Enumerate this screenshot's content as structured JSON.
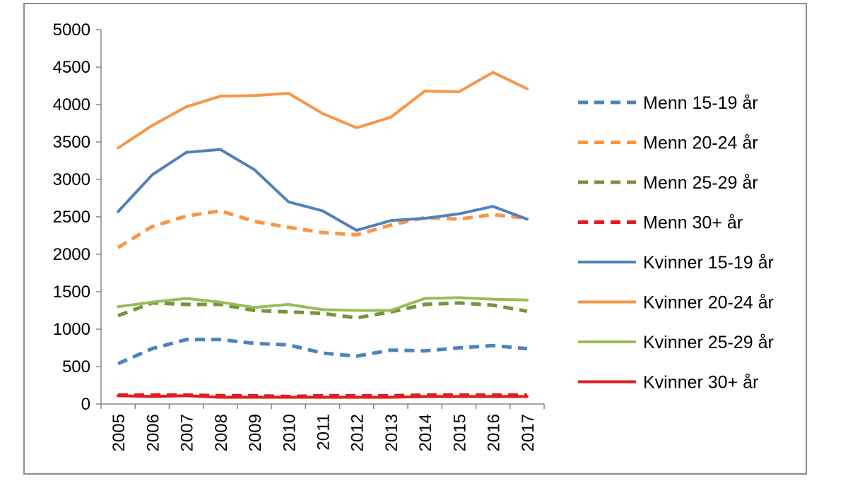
{
  "chart_data": {
    "type": "line",
    "title": "",
    "xlabel": "",
    "ylabel": "",
    "ylim": [
      0,
      5000
    ],
    "yticks": [
      0,
      500,
      1000,
      1500,
      2000,
      2500,
      3000,
      3500,
      4000,
      4500,
      5000
    ],
    "x": [
      "2005",
      "2006",
      "2007",
      "2008",
      "2009",
      "2010",
      "2011",
      "2012",
      "2013",
      "2014",
      "2015",
      "2016",
      "2017"
    ],
    "legend_position": "right",
    "series": [
      {
        "name": "Menn 15-19 år",
        "color": "#4f81bd",
        "style": "dashed",
        "values": [
          540,
          740,
          860,
          860,
          810,
          790,
          680,
          640,
          720,
          710,
          750,
          780,
          740
        ]
      },
      {
        "name": "Menn 20-24 år",
        "color": "#f79646",
        "style": "dashed",
        "values": [
          2090,
          2370,
          2510,
          2580,
          2440,
          2360,
          2290,
          2260,
          2390,
          2490,
          2470,
          2530,
          2480
        ]
      },
      {
        "name": "Menn 25-29 år",
        "color": "#77933c",
        "style": "dashed",
        "values": [
          1180,
          1350,
          1330,
          1330,
          1250,
          1230,
          1210,
          1150,
          1230,
          1330,
          1350,
          1320,
          1240
        ]
      },
      {
        "name": "Menn 30+ år",
        "color": "#e41a1c",
        "style": "dashed",
        "values": [
          120,
          120,
          120,
          110,
          110,
          100,
          110,
          110,
          110,
          120,
          120,
          120,
          120
        ]
      },
      {
        "name": "Kvinner 15-19 år",
        "color": "#4f81bd",
        "style": "solid",
        "values": [
          2570,
          3060,
          3360,
          3400,
          3130,
          2700,
          2580,
          2320,
          2450,
          2480,
          2540,
          2640,
          2470
        ]
      },
      {
        "name": "Kvinner 20-24 år",
        "color": "#f79646",
        "style": "solid",
        "values": [
          3420,
          3720,
          3970,
          4110,
          4120,
          4150,
          3880,
          3690,
          3830,
          4180,
          4170,
          4430,
          4210
        ]
      },
      {
        "name": "Kvinner 25-29 år",
        "color": "#9bbb59",
        "style": "solid",
        "values": [
          1300,
          1360,
          1410,
          1360,
          1290,
          1330,
          1260,
          1250,
          1250,
          1410,
          1420,
          1400,
          1390
        ]
      },
      {
        "name": "Kvinner 30+ år",
        "color": "#e41a1c",
        "style": "solid",
        "values": [
          110,
          100,
          110,
          90,
          90,
          90,
          90,
          90,
          90,
          100,
          100,
          100,
          100
        ]
      }
    ]
  }
}
